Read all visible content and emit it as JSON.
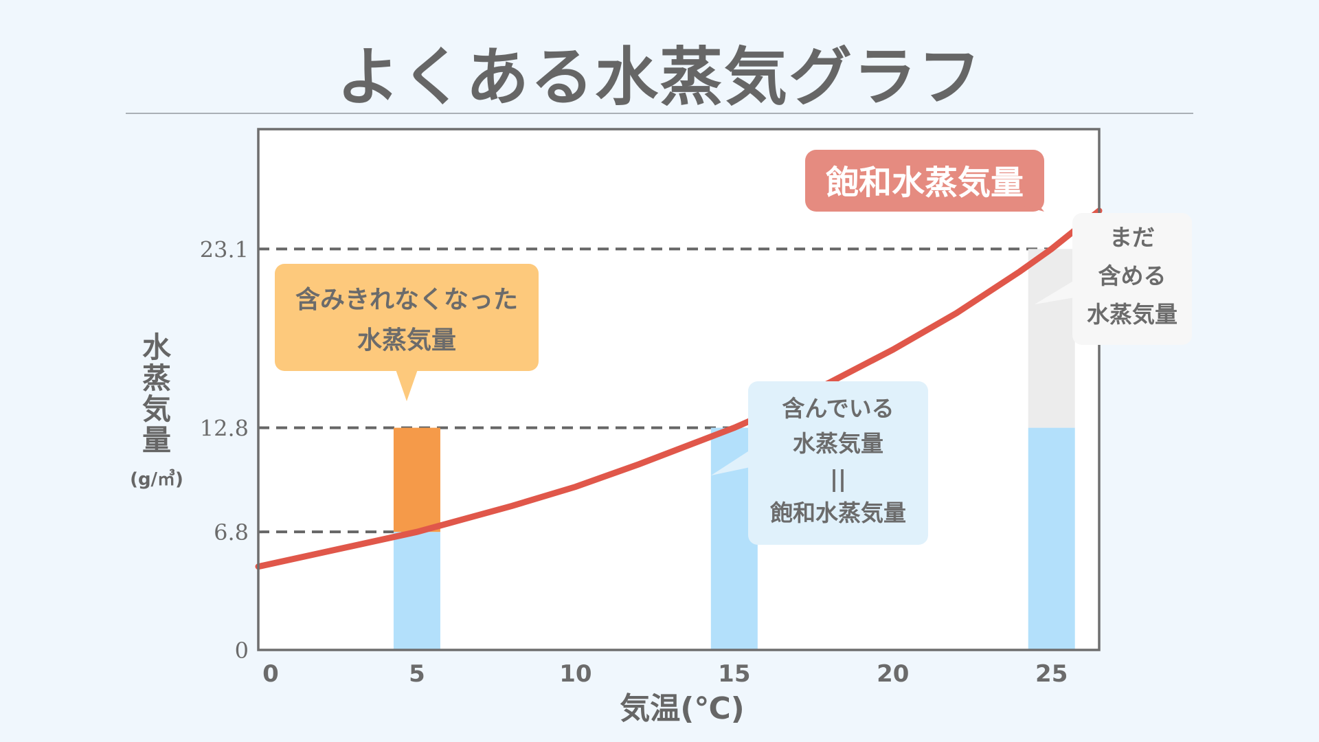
{
  "page": {
    "title": "よくある水蒸気グラフ"
  },
  "colors": {
    "background": "#f0f7fd",
    "saturation_curve": "#e0574a",
    "contained_vapor": "#b3e0fb",
    "excess_vapor": "#f59a49",
    "remaining_capacity": "#ececec",
    "label_saturation": "#e58b80",
    "label_excess": "#fdc97c",
    "label_contained": "#e0f1fb",
    "label_remaining": "#f7f7f7"
  },
  "chart_data": {
    "type": "bar",
    "xlabel": "気温(℃)",
    "ylabel_lines": [
      "水",
      "蒸",
      "気",
      "量"
    ],
    "ylabel_unit": "(g/㎥)",
    "xlim": [
      0,
      26.5
    ],
    "ylim": [
      0,
      30
    ],
    "x_ticks": [
      0,
      5,
      10,
      15,
      20,
      25
    ],
    "y_ticks": [
      {
        "value": 0,
        "label": "0"
      },
      {
        "value": 6.8,
        "label": "6.8"
      },
      {
        "value": 12.8,
        "label": "12.8"
      },
      {
        "value": 23.1,
        "label": "23.1"
      }
    ],
    "bars": [
      {
        "x": 5,
        "segments": [
          {
            "from": 0,
            "to": 6.8,
            "kind": "contained_vapor"
          },
          {
            "from": 6.8,
            "to": 12.8,
            "kind": "excess_vapor"
          }
        ]
      },
      {
        "x": 15,
        "segments": [
          {
            "from": 0,
            "to": 12.8,
            "kind": "contained_vapor"
          }
        ]
      },
      {
        "x": 25,
        "segments": [
          {
            "from": 0,
            "to": 12.8,
            "kind": "contained_vapor"
          },
          {
            "from": 12.8,
            "to": 23.1,
            "kind": "remaining_capacity"
          }
        ]
      }
    ],
    "reference_lines": [
      {
        "y": 23.1,
        "x_end": 25
      },
      {
        "y": 12.8,
        "x_end": 15
      },
      {
        "y": 6.8,
        "x_end": 5
      }
    ],
    "saturation_curve": {
      "name": "飽和水蒸気量",
      "points": [
        [
          0,
          4.8
        ],
        [
          2,
          5.6
        ],
        [
          4,
          6.4
        ],
        [
          5,
          6.8
        ],
        [
          6,
          7.3
        ],
        [
          8,
          8.3
        ],
        [
          10,
          9.4
        ],
        [
          12,
          10.7
        ],
        [
          14,
          12.1
        ],
        [
          15,
          12.8
        ],
        [
          16,
          13.6
        ],
        [
          18,
          15.4
        ],
        [
          20,
          17.3
        ],
        [
          22,
          19.4
        ],
        [
          24,
          21.8
        ],
        [
          25,
          23.1
        ],
        [
          26.5,
          25.3
        ]
      ]
    }
  },
  "callouts": {
    "saturation": "飽和水蒸気量",
    "excess": [
      "含みきれなくなった",
      "水蒸気量"
    ],
    "contained": [
      "含んでいる",
      "水蒸気量",
      "||",
      "飽和水蒸気量"
    ],
    "remaining": [
      "まだ",
      "含める",
      "水蒸気量"
    ]
  }
}
